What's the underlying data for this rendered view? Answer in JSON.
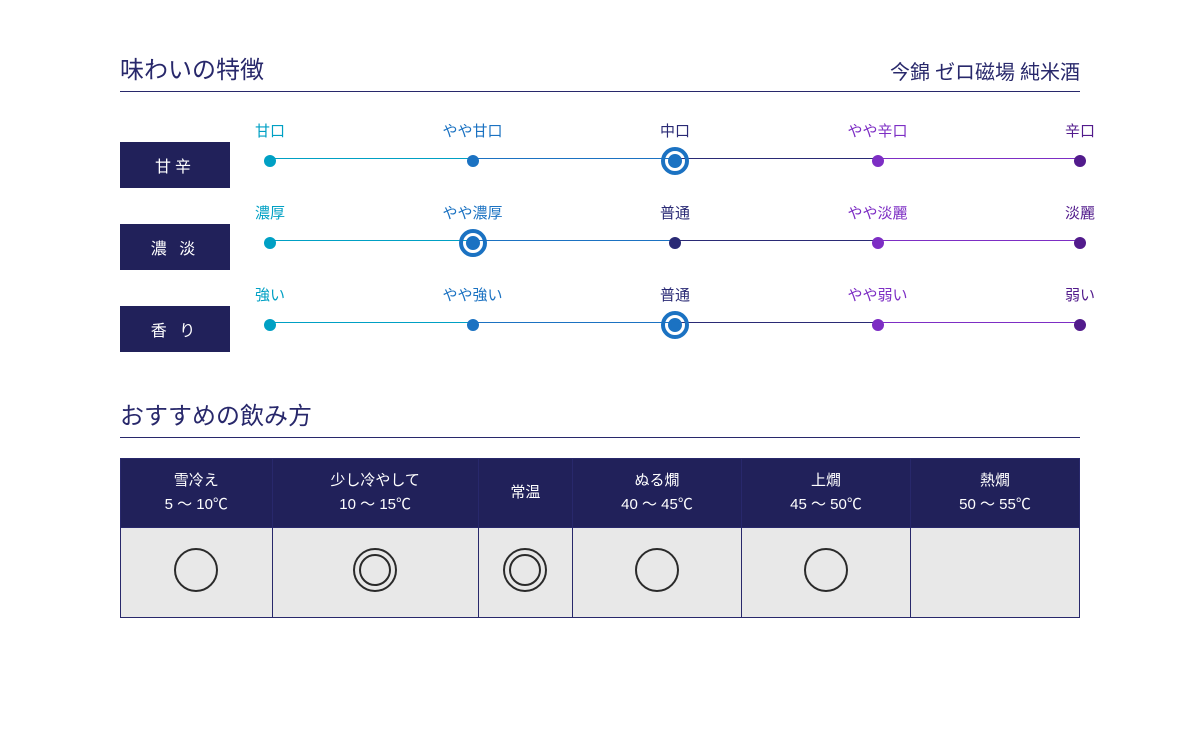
{
  "colors": {
    "navy": "#21215a",
    "navy_border": "#28286b",
    "teal": "#00a0c4",
    "blue": "#1b72c2",
    "mid_navy": "#2a2a75",
    "purple": "#7d2ec4",
    "dark_purple": "#521b8c",
    "line_navy": "#28286b",
    "mark_black": "#2a2a2a",
    "cell_gray": "#e8e8e8"
  },
  "header": {
    "title": "味わいの特徴",
    "product": "今錦 ゼロ磁場 純米酒"
  },
  "scales": [
    {
      "name": "甘辛",
      "selected_index": 2,
      "points": [
        {
          "label": "甘口",
          "color": "#00a0c4"
        },
        {
          "label": "やや甘口",
          "color": "#1b72c2"
        },
        {
          "label": "中口",
          "color": "#2a2a75"
        },
        {
          "label": "やや辛口",
          "color": "#7d2ec4"
        },
        {
          "label": "辛口",
          "color": "#521b8c"
        }
      ]
    },
    {
      "name": "濃 淡",
      "selected_index": 1,
      "points": [
        {
          "label": "濃厚",
          "color": "#00a0c4"
        },
        {
          "label": "やや濃厚",
          "color": "#1b72c2"
        },
        {
          "label": "普通",
          "color": "#2a2a75"
        },
        {
          "label": "やや淡麗",
          "color": "#7d2ec4"
        },
        {
          "label": "淡麗",
          "color": "#521b8c"
        }
      ]
    },
    {
      "name": "香 り",
      "selected_index": 2,
      "points": [
        {
          "label": "強い",
          "color": "#00a0c4"
        },
        {
          "label": "やや強い",
          "color": "#1b72c2"
        },
        {
          "label": "普通",
          "color": "#2a2a75"
        },
        {
          "label": "やや弱い",
          "color": "#7d2ec4"
        },
        {
          "label": "弱い",
          "color": "#521b8c"
        }
      ]
    }
  ],
  "positions_pct": [
    0,
    25,
    50,
    75,
    100
  ],
  "serving": {
    "title": "おすすめの飲み方",
    "columns": [
      {
        "name": "雪冷え",
        "temp": "5 ～ 10℃",
        "rec": "single"
      },
      {
        "name": "少し冷やして",
        "temp": "10 ～ 15℃",
        "rec": "double"
      },
      {
        "name": "常温",
        "temp": "",
        "rec": "double"
      },
      {
        "name": "ぬる燗",
        "temp": "40 ～ 45℃",
        "rec": "single"
      },
      {
        "name": "上燗",
        "temp": "45 ～ 50℃",
        "rec": "single"
      },
      {
        "name": "熱燗",
        "temp": "50 ～ 55℃",
        "rec": "none"
      }
    ]
  }
}
